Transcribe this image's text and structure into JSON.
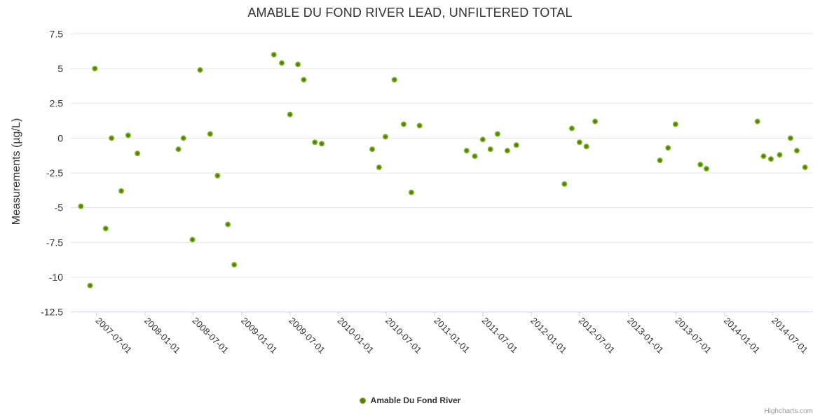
{
  "header": {
    "title": "AMABLE DU FOND RIVER LEAD, UNFILTERED TOTAL"
  },
  "y_axis": {
    "title": "Measurements (µg/L)"
  },
  "legend": {
    "series_label": "Amable Du Fond River"
  },
  "credits": {
    "label": "Highcharts.com"
  },
  "colors": {
    "marker_outer": "#7cb41e",
    "marker_core": "#3f6b00",
    "grid_line": "#e6e6e6",
    "axis_line": "#ccd6eb",
    "text": "#333333",
    "muted_text": "#999999"
  },
  "chart_data": {
    "type": "scatter",
    "title": "AMABLE DU FOND RIVER LEAD, UNFILTERED TOTAL",
    "xlabel": "",
    "ylabel": "Measurements (µg/L)",
    "x_axis_type": "datetime",
    "grid": true,
    "legend_position": "bottom-center",
    "ylim": [
      -12.5,
      7.5
    ],
    "y_ticks": [
      7.5,
      5,
      2.5,
      0,
      -2.5,
      -5,
      -7.5,
      -10,
      -12.5
    ],
    "x_ticks": [
      "2007-07-01",
      "2008-01-01",
      "2008-07-01",
      "2009-01-01",
      "2009-07-01",
      "2010-01-01",
      "2010-07-01",
      "2011-01-01",
      "2011-07-01",
      "2012-01-01",
      "2012-07-01",
      "2013-01-01",
      "2013-07-01",
      "2014-01-01",
      "2014-07-01"
    ],
    "x_range": [
      "2007-03-26",
      "2014-12-01"
    ],
    "series": [
      {
        "name": "Amable Du Fond River",
        "color": "#7cb41e",
        "points": [
          [
            "2007-05-03",
            -4.9
          ],
          [
            "2007-06-07",
            -10.6
          ],
          [
            "2007-06-25",
            5.0
          ],
          [
            "2007-08-05",
            -6.5
          ],
          [
            "2007-08-27",
            0.0
          ],
          [
            "2007-10-03",
            -3.8
          ],
          [
            "2007-10-29",
            0.2
          ],
          [
            "2007-12-03",
            -1.1
          ],
          [
            "2008-05-06",
            -0.8
          ],
          [
            "2008-05-25",
            0.0
          ],
          [
            "2008-06-28",
            -7.3
          ],
          [
            "2008-07-27",
            4.9
          ],
          [
            "2008-09-03",
            0.3
          ],
          [
            "2008-10-01",
            -2.7
          ],
          [
            "2008-11-09",
            -6.2
          ],
          [
            "2008-12-03",
            -9.1
          ],
          [
            "2009-05-02",
            6.0
          ],
          [
            "2009-06-01",
            5.4
          ],
          [
            "2009-07-02",
            1.7
          ],
          [
            "2009-08-01",
            5.3
          ],
          [
            "2009-08-23",
            4.2
          ],
          [
            "2009-10-04",
            -0.3
          ],
          [
            "2009-10-30",
            -0.4
          ],
          [
            "2010-05-09",
            -0.8
          ],
          [
            "2010-06-04",
            -2.1
          ],
          [
            "2010-06-28",
            0.1
          ],
          [
            "2010-08-01",
            4.2
          ],
          [
            "2010-09-05",
            1.0
          ],
          [
            "2010-10-04",
            -3.9
          ],
          [
            "2010-11-04",
            0.9
          ],
          [
            "2011-05-01",
            -0.9
          ],
          [
            "2011-06-01",
            -1.3
          ],
          [
            "2011-07-01",
            -0.1
          ],
          [
            "2011-07-30",
            -0.8
          ],
          [
            "2011-08-26",
            0.3
          ],
          [
            "2011-10-02",
            -0.9
          ],
          [
            "2011-11-05",
            -0.5
          ],
          [
            "2012-05-05",
            -3.3
          ],
          [
            "2012-06-02",
            0.7
          ],
          [
            "2012-07-01",
            -0.3
          ],
          [
            "2012-07-27",
            -0.6
          ],
          [
            "2012-08-29",
            1.2
          ],
          [
            "2013-05-01",
            -1.6
          ],
          [
            "2013-06-01",
            -0.7
          ],
          [
            "2013-06-29",
            1.0
          ],
          [
            "2013-10-01",
            -1.9
          ],
          [
            "2013-10-24",
            -2.2
          ],
          [
            "2014-05-05",
            1.2
          ],
          [
            "2014-05-28",
            -1.3
          ],
          [
            "2014-06-25",
            -1.5
          ],
          [
            "2014-07-28",
            -1.2
          ],
          [
            "2014-09-07",
            0.0
          ],
          [
            "2014-10-01",
            -0.9
          ],
          [
            "2014-11-01",
            -2.1
          ]
        ]
      }
    ]
  }
}
